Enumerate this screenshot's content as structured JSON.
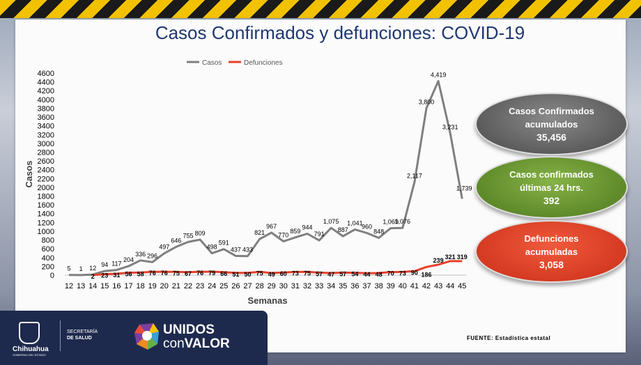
{
  "title": "Casos Confirmados y defunciones: COVID-19",
  "bubbles": {
    "confirmados": {
      "line1": "Casos Confirmados",
      "line2": "acumulados",
      "value": "35,456"
    },
    "ultimas": {
      "line1": "Casos confirmados",
      "line2": "últimas 24 hrs.",
      "value": "392"
    },
    "defunciones": {
      "line1": "Defunciones",
      "line2": "acumuladas",
      "value": "3,058"
    }
  },
  "footer": {
    "state_name": "Chihuahua",
    "state_sub": "GOBIERNO DEL ESTADO",
    "secretaria_line1": "SECRETARÍA",
    "secretaria_line2": "DE SALUD",
    "unidos": "UNIDOS",
    "con": "con",
    "valor": "VALOR",
    "fuente": "FUENTE: Estadística estatal"
  },
  "colors": {
    "casos": "#7f7f7f",
    "defunciones": "#e8402a",
    "title": "#1f3872"
  },
  "chart_data": {
    "type": "line",
    "xlabel": "Semanas",
    "ylabel": "Casos",
    "ylim": [
      0,
      4600
    ],
    "yticks": [
      0,
      200,
      400,
      600,
      800,
      1000,
      1200,
      1400,
      1600,
      1800,
      2000,
      2200,
      2400,
      2600,
      2800,
      3000,
      3200,
      3400,
      3600,
      3800,
      4000,
      4200,
      4400,
      4600
    ],
    "legend_position": "top",
    "grid": false,
    "x": [
      "12",
      "13",
      "14",
      "15",
      "16",
      "17",
      "18",
      "19",
      "20",
      "21",
      "22",
      "23",
      "24",
      "25",
      "26",
      "27",
      "28",
      "29",
      "30",
      "31",
      "32",
      "33",
      "34",
      "35",
      "36",
      "37",
      "38",
      "39",
      "40",
      "41",
      "42",
      "43",
      "44",
      "45"
    ],
    "series": [
      {
        "name": "Casos",
        "values": [
          5,
          1,
          12,
          94,
          117,
          204,
          336,
          296,
          497,
          646,
          755,
          809,
          498,
          591,
          437,
          433,
          821,
          967,
          770,
          859,
          944,
          791,
          1075,
          887,
          1041,
          960,
          848,
          1069,
          1076,
          2117,
          3800,
          4419,
          3231,
          1739
        ],
        "labels": [
          "5",
          "1",
          "12",
          "94",
          "117",
          "204",
          "336",
          "296",
          "497",
          "646",
          "755",
          "809",
          "498",
          "591",
          "437",
          "433",
          "821",
          "967",
          "770",
          "859",
          "944",
          "791",
          "1,075",
          "887",
          "1,041",
          "960",
          "848",
          "1,069",
          "1,076",
          "2,117",
          "3,800",
          "4,419",
          "3,231",
          "1,739"
        ]
      },
      {
        "name": "Defunciones",
        "values": [
          null,
          null,
          2,
          23,
          31,
          56,
          58,
          76,
          76,
          75,
          67,
          76,
          79,
          66,
          51,
          50,
          75,
          49,
          60,
          73,
          75,
          57,
          47,
          57,
          54,
          44,
          48,
          70,
          73,
          90,
          186,
          239,
          321,
          319
        ],
        "labels": [
          "",
          "",
          "2",
          "23",
          "31",
          "56",
          "58",
          "76",
          "76",
          "75",
          "67",
          "76",
          "79",
          "66",
          "51",
          "50",
          "75",
          "49",
          "60",
          "73",
          "75",
          "57",
          "47",
          "57",
          "54",
          "44",
          "48",
          "70",
          "73",
          "90",
          "186",
          "239",
          "321",
          "319"
        ]
      }
    ]
  }
}
